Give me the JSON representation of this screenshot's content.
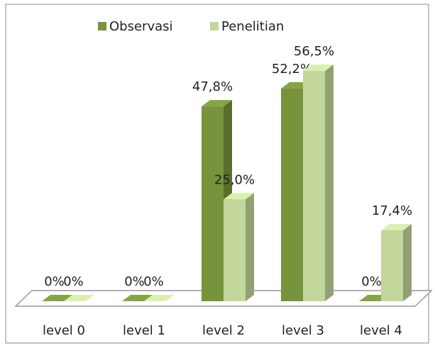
{
  "chart_data": {
    "type": "bar3d",
    "categories": [
      "level 0",
      "level 1",
      "level 2",
      "level 3",
      "level 4"
    ],
    "series": [
      {
        "name": "Observasi",
        "color": "#77933c",
        "values": [
          0,
          0,
          47.8,
          52.2,
          0
        ],
        "value_labels": [
          "0%",
          "0%",
          "47,8%",
          "52,2%",
          "0%"
        ]
      },
      {
        "name": "Penelitian",
        "color": "#c3d69b",
        "values": [
          0,
          0,
          25.0,
          56.5,
          17.4
        ],
        "value_labels": [
          "0%",
          "0%",
          "25,0%",
          "56,5%",
          "17,4%"
        ]
      }
    ],
    "legend": "top"
  }
}
